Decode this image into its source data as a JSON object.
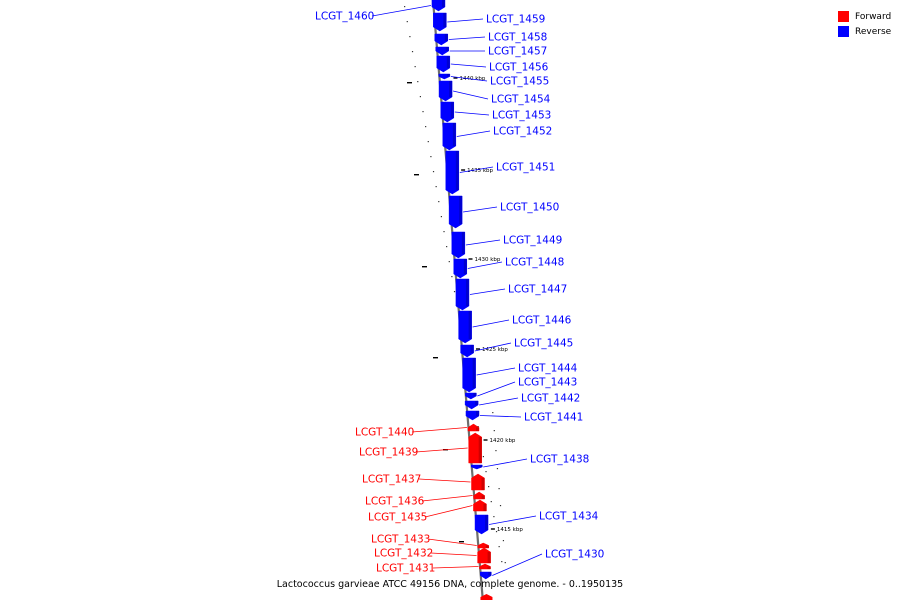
{
  "legend": {
    "forward": {
      "label": "Forward",
      "color": "#ff0000"
    },
    "reverse": {
      "label": "Reverse",
      "color": "#0000ff"
    }
  },
  "caption": "Lactococcus garvieae ATCC 49156 DNA, complete genome. - 0..1950135",
  "ticks": [
    "1440 kbp",
    "1435 kbp",
    "1430 kbp",
    "1425 kbp",
    "1420 kbp",
    "1415 kbp"
  ],
  "genes": [
    {
      "label": "LCGT_1460",
      "strand": "reverse"
    },
    {
      "label": "LCGT_1459",
      "strand": "reverse"
    },
    {
      "label": "LCGT_1458",
      "strand": "reverse"
    },
    {
      "label": "LCGT_1457",
      "strand": "reverse"
    },
    {
      "label": "LCGT_1456",
      "strand": "reverse"
    },
    {
      "label": "LCGT_1455",
      "strand": "reverse"
    },
    {
      "label": "LCGT_1454",
      "strand": "reverse"
    },
    {
      "label": "LCGT_1453",
      "strand": "reverse"
    },
    {
      "label": "LCGT_1452",
      "strand": "reverse"
    },
    {
      "label": "LCGT_1451",
      "strand": "reverse"
    },
    {
      "label": "LCGT_1450",
      "strand": "reverse"
    },
    {
      "label": "LCGT_1449",
      "strand": "reverse"
    },
    {
      "label": "LCGT_1448",
      "strand": "reverse"
    },
    {
      "label": "LCGT_1447",
      "strand": "reverse"
    },
    {
      "label": "LCGT_1446",
      "strand": "reverse"
    },
    {
      "label": "LCGT_1445",
      "strand": "reverse"
    },
    {
      "label": "LCGT_1444",
      "strand": "reverse"
    },
    {
      "label": "LCGT_1443",
      "strand": "reverse"
    },
    {
      "label": "LCGT_1442",
      "strand": "reverse"
    },
    {
      "label": "LCGT_1441",
      "strand": "reverse"
    },
    {
      "label": "LCGT_1440",
      "strand": "forward"
    },
    {
      "label": "LCGT_1439",
      "strand": "forward"
    },
    {
      "label": "LCGT_1438",
      "strand": "reverse"
    },
    {
      "label": "LCGT_1437",
      "strand": "forward"
    },
    {
      "label": "LCGT_1436",
      "strand": "forward"
    },
    {
      "label": "LCGT_1435",
      "strand": "forward"
    },
    {
      "label": "LCGT_1434",
      "strand": "reverse"
    },
    {
      "label": "LCGT_1433",
      "strand": "forward"
    },
    {
      "label": "LCGT_1432",
      "strand": "forward"
    },
    {
      "label": "LCGT_1431",
      "strand": "forward"
    },
    {
      "label": "LCGT_1430",
      "strand": "reverse"
    }
  ]
}
